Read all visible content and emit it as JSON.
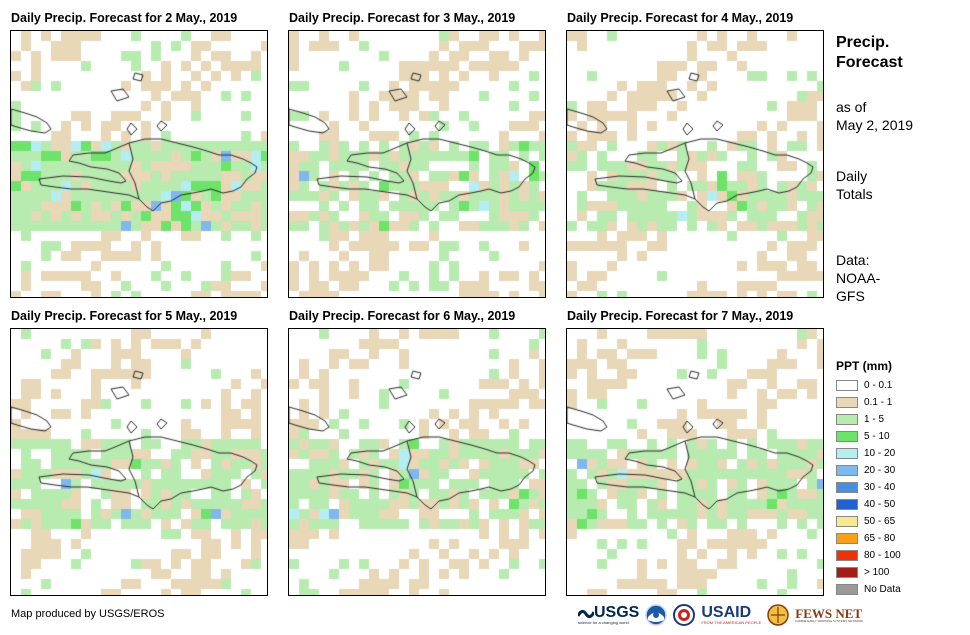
{
  "panels": [
    {
      "title": "Daily Precip. Forecast for 2 May., 2019"
    },
    {
      "title": "Daily Precip. Forecast for 3 May., 2019"
    },
    {
      "title": "Daily Precip. Forecast for 4 May., 2019"
    },
    {
      "title": "Daily Precip. Forecast for 5 May., 2019"
    },
    {
      "title": "Daily Precip. Forecast for 6 May., 2019"
    },
    {
      "title": "Daily Precip. Forecast for 7 May., 2019"
    }
  ],
  "side": {
    "title_line1": "Precip.",
    "title_line2": "Forecast",
    "asof_line1": "as of",
    "asof_line2": "May 2, 2019",
    "totals_line1": "Daily",
    "totals_line2": "Totals",
    "data_line1": "Data:",
    "data_line2": "NOAA-",
    "data_line3": "GFS"
  },
  "legend": {
    "title": "PPT (mm)",
    "items": [
      {
        "label": "0 - 0.1",
        "color": "#ffffff"
      },
      {
        "label": "0.1 - 1",
        "color": "#e8d8b8"
      },
      {
        "label": "1 - 5",
        "color": "#b8ebb0"
      },
      {
        "label": "5 - 10",
        "color": "#6ee36a"
      },
      {
        "label": "10 - 20",
        "color": "#b4eef2"
      },
      {
        "label": "20 - 30",
        "color": "#80b8ee"
      },
      {
        "label": "30 - 40",
        "color": "#4a90e0"
      },
      {
        "label": "40 - 50",
        "color": "#2460d0"
      },
      {
        "label": "50 - 65",
        "color": "#f8e890"
      },
      {
        "label": "65 - 80",
        "color": "#f8a018"
      },
      {
        "label": "80 - 100",
        "color": "#f03008"
      },
      {
        "label": "> 100",
        "color": "#a02018"
      },
      {
        "label": "No Data",
        "color": "#999999"
      }
    ]
  },
  "credit": "Map produced by USGS/EROS",
  "logos": {
    "usgs": "USGS",
    "usgs_tagline": "science for a changing world",
    "usaid": "USAID",
    "usaid_tagline": "FROM THE AMERICAN PEOPLE",
    "fewsnet": "FEWS NET",
    "fewsnet_tagline": "FAMINE EARLY WARNING SYSTEMS NETWORK"
  }
}
